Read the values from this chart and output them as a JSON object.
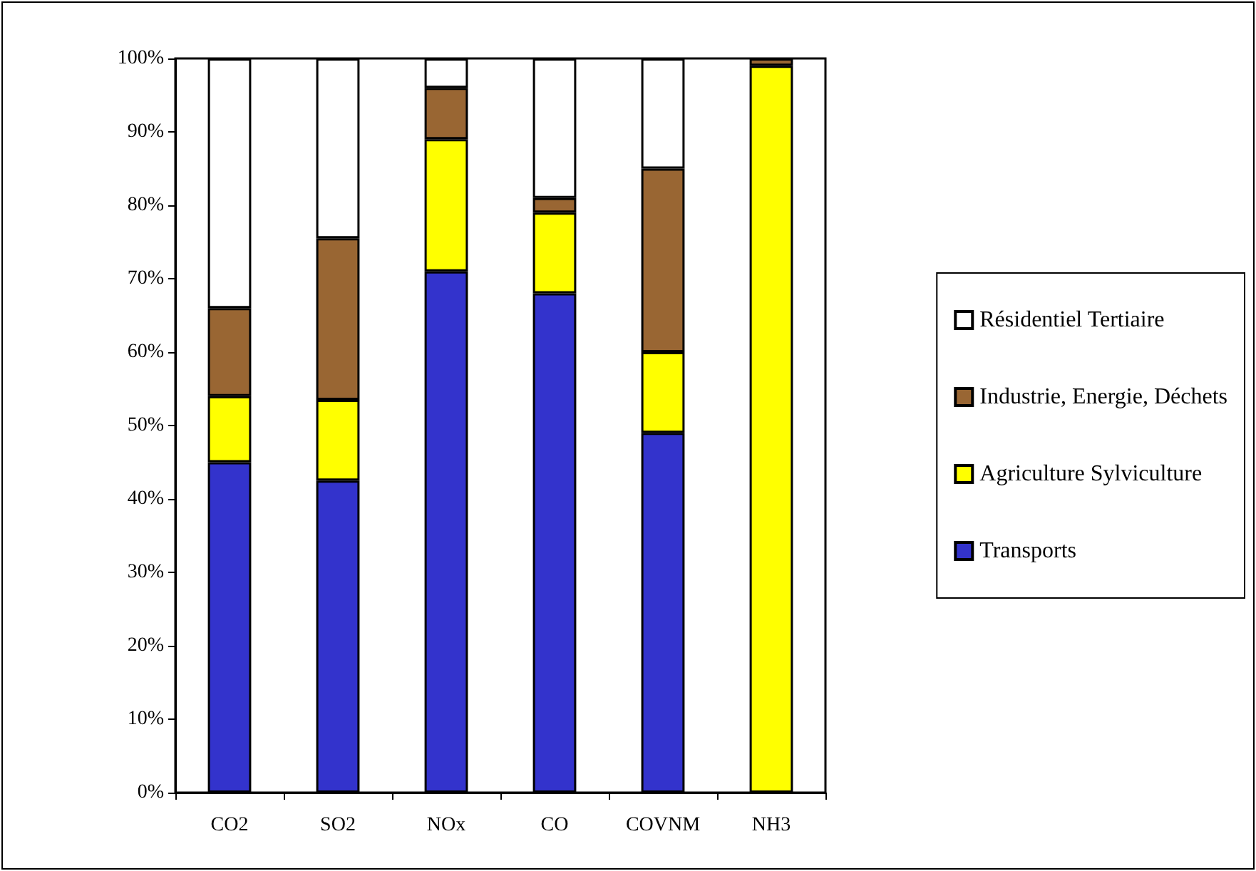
{
  "chart_data": {
    "type": "bar",
    "stacked": true,
    "categories": [
      "CO2",
      "SO2",
      "NOx",
      "CO",
      "COVNM",
      "NH3"
    ],
    "series": [
      {
        "name": "Transports",
        "color": "#3333cc",
        "values": [
          45,
          42.5,
          71,
          68,
          49,
          0
        ]
      },
      {
        "name": "Agriculture Sylviculture",
        "color": "#ffff00",
        "values": [
          9,
          11,
          18,
          11,
          11,
          99
        ]
      },
      {
        "name": "Industrie, Energie, Déchets",
        "color": "#996633",
        "values": [
          12,
          22,
          7,
          2,
          25,
          1
        ]
      },
      {
        "name": "Résidentiel Tertiaire",
        "color": "#ffffff",
        "values": [
          34,
          24.5,
          4,
          19,
          15,
          0
        ]
      }
    ],
    "ylim": [
      0,
      100
    ],
    "yticks": [
      {
        "value": 0,
        "label": "0%"
      },
      {
        "value": 10,
        "label": "10%"
      },
      {
        "value": 20,
        "label": "20%"
      },
      {
        "value": 30,
        "label": "30%"
      },
      {
        "value": 40,
        "label": "40%"
      },
      {
        "value": 50,
        "label": "50%"
      },
      {
        "value": 60,
        "label": "60%"
      },
      {
        "value": 70,
        "label": "70%"
      },
      {
        "value": 80,
        "label": "80%"
      },
      {
        "value": 90,
        "label": "90%"
      },
      {
        "value": 100,
        "label": "100%"
      }
    ],
    "grid": false,
    "legend": "right"
  }
}
